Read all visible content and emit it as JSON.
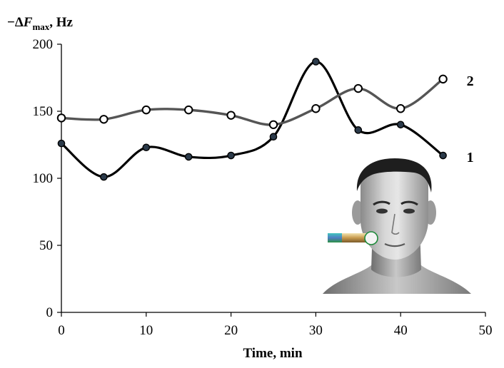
{
  "chart_data": {
    "type": "line",
    "title": "",
    "ylabel": {
      "prefix": "−Δ",
      "symbol": "F",
      "subscript": "max",
      "unit": ", Hz"
    },
    "xlabel": "Time, min",
    "xlim": [
      0,
      50
    ],
    "ylim": [
      0,
      200
    ],
    "xticks": [
      0,
      10,
      20,
      30,
      40,
      50
    ],
    "yticks": [
      0,
      50,
      100,
      150,
      200
    ],
    "grid": false,
    "legend": "inline labels at line ends",
    "x": [
      0,
      5,
      10,
      15,
      20,
      25,
      30,
      35,
      40,
      45
    ],
    "series": [
      {
        "name": "1",
        "values": [
          126,
          101,
          123,
          116,
          117,
          131,
          187,
          136,
          140,
          117
        ],
        "line_color": "#000000",
        "marker": "filled-dark",
        "marker_fill": "#2b3a4a"
      },
      {
        "name": "2",
        "values": [
          145,
          144,
          151,
          151,
          147,
          140,
          152,
          167,
          152,
          174
        ],
        "line_color": "#555555",
        "marker": "open-circle",
        "marker_fill": "#ffffff"
      }
    ]
  },
  "illustration": {
    "subject": "man-face-with-sensor-at-cheek",
    "icon": "face-with-sensor-icon"
  }
}
